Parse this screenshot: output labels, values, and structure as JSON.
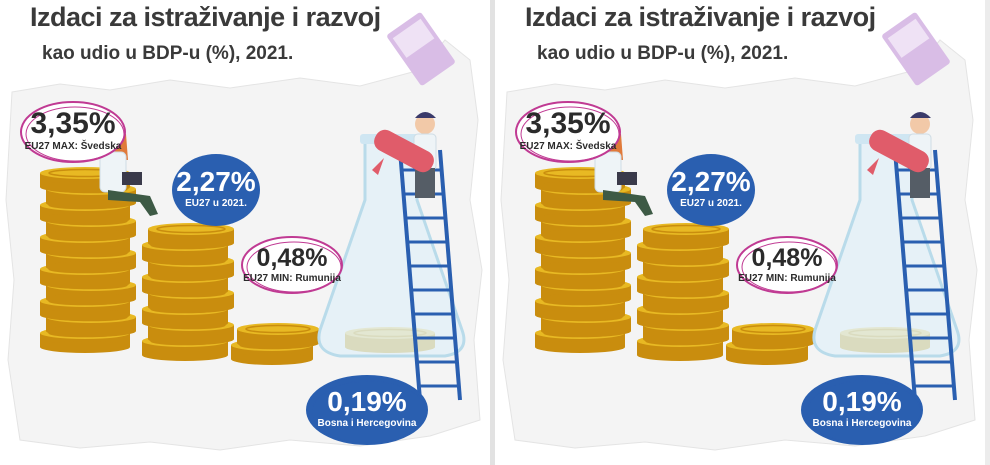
{
  "title": "Izdaci za istraživanje i razvoj",
  "subtitle": "kao udio u BDP-u (%), 2021.",
  "colors": {
    "coin_face": "#e8b923",
    "coin_edge": "#c98d0e",
    "coin_pale": "#eedc98",
    "bubble_pink": "#c03a93",
    "bubble_blue": "#2a5fb0",
    "title_text": "#3a3a3a"
  },
  "chart_data": {
    "type": "bar",
    "title": "Izdaci za istraživanje i razvoj",
    "subtitle": "kao udio u BDP-u (%), 2021.",
    "categories": [
      "EU27 MAX: Švedska",
      "EU27 u 2021.",
      "EU27 MIN: Rumunija",
      "Bosna i Hercegovina"
    ],
    "value_labels": [
      "3,35%",
      "2,27%",
      "0,48%",
      "0,19%"
    ],
    "values": [
      3.35,
      2.27,
      0.48,
      0.19
    ],
    "unit": "%"
  }
}
